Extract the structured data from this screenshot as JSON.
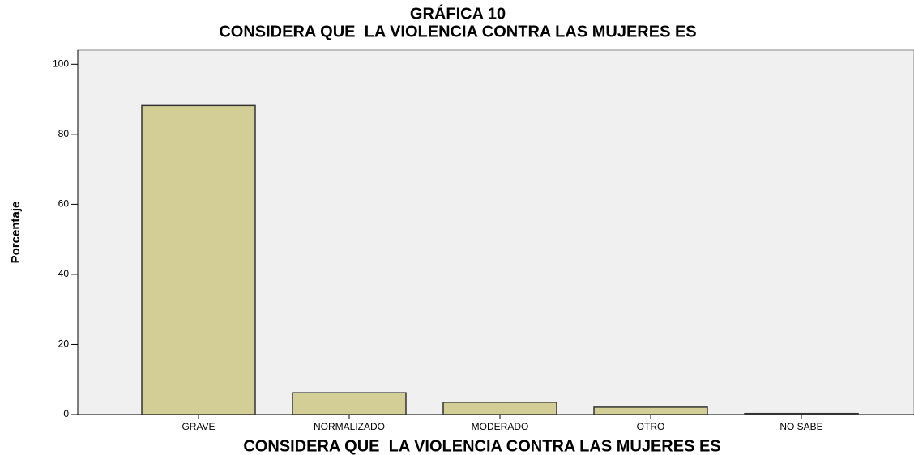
{
  "chart_data": {
    "type": "bar",
    "title": "GRÁFICA 10",
    "subtitle": "CONSIDERA QUE  LA VIOLENCIA CONTRA LAS MUJERES ES",
    "x_label": "CONSIDERA QUE  LA VIOLENCIA CONTRA LAS MUJERES ES",
    "y_label": "Porcentaje",
    "categories": [
      "GRAVE",
      "NORMALIZADO",
      "MODERADO",
      "OTRO",
      "NO SABE"
    ],
    "values": [
      88.2,
      6.2,
      3.5,
      2.1,
      0.3
    ],
    "color": "#d3ce96",
    "ylim": [
      0,
      104
    ],
    "yticks": [
      0,
      20,
      40,
      60,
      80,
      100
    ]
  }
}
